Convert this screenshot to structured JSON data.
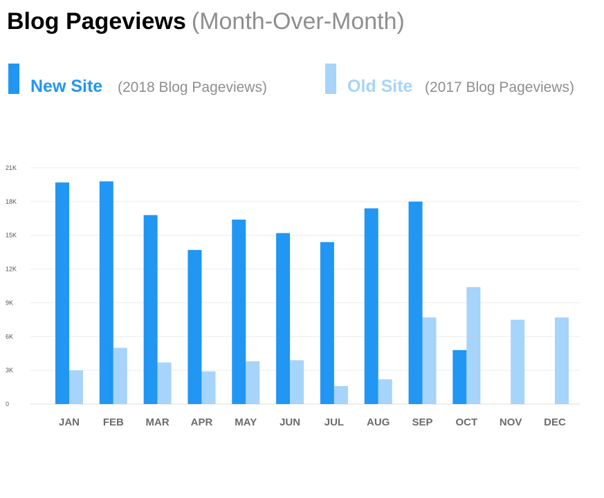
{
  "header": {
    "title": "Blog Pageviews",
    "subtitle": "(Month-Over-Month)"
  },
  "legend": [
    {
      "name": "New Site",
      "description": "(2018 Blog Pageviews)",
      "color": "#2196f3"
    },
    {
      "name": "Old Site",
      "description": "(2017 Blog Pageviews)",
      "color": "#a6d4fa"
    }
  ],
  "chart_data": {
    "type": "bar",
    "categories": [
      "JAN",
      "FEB",
      "MAR",
      "APR",
      "MAY",
      "JUN",
      "JUL",
      "AUG",
      "SEP",
      "OCT",
      "NOV",
      "DEC"
    ],
    "series": [
      {
        "name": "New Site",
        "color": "#2196f3",
        "values": [
          19700,
          19800,
          16800,
          13700,
          16400,
          15200,
          14400,
          17400,
          18000,
          4800,
          null,
          null
        ]
      },
      {
        "name": "Old Site",
        "color": "#a6d4fa",
        "values": [
          3000,
          5000,
          3700,
          2900,
          3800,
          3900,
          1600,
          2200,
          7700,
          10400,
          7500,
          7700
        ]
      }
    ],
    "yticks": [
      0,
      3000,
      6000,
      9000,
      12000,
      15000,
      18000,
      21000
    ],
    "ytick_labels": [
      "0",
      "3K",
      "6K",
      "9K",
      "12K",
      "15K",
      "18K",
      "21K"
    ],
    "ylim": [
      0,
      21000
    ],
    "grid": true,
    "xlabel": "",
    "ylabel": "",
    "legend_position": "top"
  }
}
